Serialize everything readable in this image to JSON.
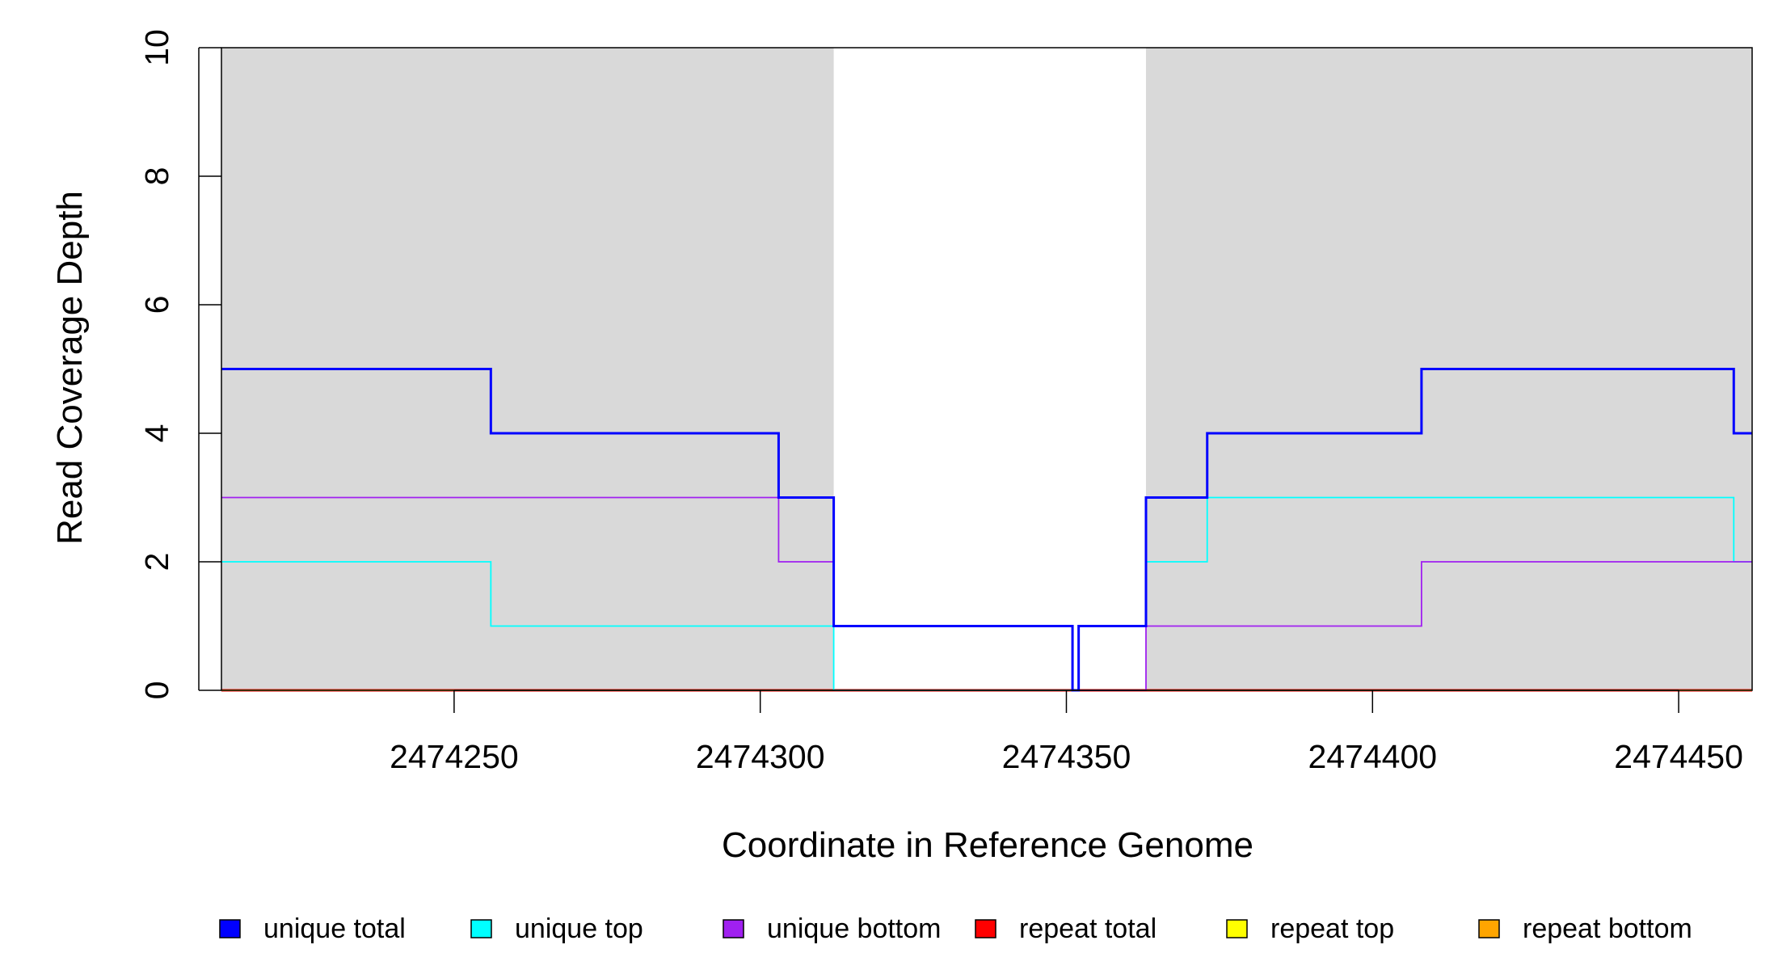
{
  "chart_data": {
    "type": "line",
    "title": "",
    "xlabel": "Coordinate in Reference Genome",
    "ylabel": "Read Coverage Depth",
    "xlim": [
      2474212,
      2474462
    ],
    "ylim": [
      0,
      10
    ],
    "x_ticks": [
      "2474250",
      "2474300",
      "2474350",
      "2474400",
      "2474450"
    ],
    "y_ticks": [
      "0",
      "2",
      "4",
      "6",
      "8",
      "10"
    ],
    "shaded_regions": [
      {
        "x0": 2474212,
        "x1": 2474312,
        "color": "#d9d9d9"
      },
      {
        "x0": 2474363,
        "x1": 2474462,
        "color": "#d9d9d9"
      }
    ],
    "series": [
      {
        "name": "repeat total",
        "color": "#ff0000",
        "steps": [
          [
            2474212,
            0
          ],
          [
            2474462,
            0
          ]
        ]
      },
      {
        "name": "repeat top",
        "color": "#ffff00",
        "steps": [
          [
            2474212,
            0
          ],
          [
            2474462,
            0
          ]
        ]
      },
      {
        "name": "repeat bottom",
        "color": "#ffa500",
        "steps": [
          [
            2474212,
            0
          ],
          [
            2474462,
            0
          ]
        ]
      },
      {
        "name": "unique top",
        "color": "#00ffff",
        "steps": [
          [
            2474212,
            2
          ],
          [
            2474256,
            1
          ],
          [
            2474312,
            0
          ],
          [
            2474352,
            1
          ],
          [
            2474363,
            2
          ],
          [
            2474373,
            3
          ],
          [
            2474459,
            2
          ],
          [
            2474462,
            2
          ]
        ]
      },
      {
        "name": "unique bottom",
        "color": "#a020f0",
        "steps": [
          [
            2474212,
            3
          ],
          [
            2474303,
            2
          ],
          [
            2474312,
            1
          ],
          [
            2474351,
            0
          ],
          [
            2474363,
            1
          ],
          [
            2474408,
            2
          ],
          [
            2474462,
            2
          ]
        ]
      },
      {
        "name": "unique total",
        "color": "#0000ff",
        "steps": [
          [
            2474212,
            5
          ],
          [
            2474256,
            4
          ],
          [
            2474303,
            3
          ],
          [
            2474312,
            1
          ],
          [
            2474351,
            0
          ],
          [
            2474352,
            1
          ],
          [
            2474363,
            3
          ],
          [
            2474373,
            4
          ],
          [
            2474408,
            5
          ],
          [
            2474459,
            4
          ],
          [
            2474462,
            4
          ]
        ]
      }
    ],
    "legend": {
      "position": "bottom",
      "items": [
        {
          "label": "unique total",
          "color": "#0000ff"
        },
        {
          "label": "unique top",
          "color": "#00ffff"
        },
        {
          "label": "unique bottom",
          "color": "#a020f0"
        },
        {
          "label": "repeat total",
          "color": "#ff0000"
        },
        {
          "label": "repeat top",
          "color": "#ffff00"
        },
        {
          "label": "repeat bottom",
          "color": "#ffa500"
        }
      ]
    }
  }
}
